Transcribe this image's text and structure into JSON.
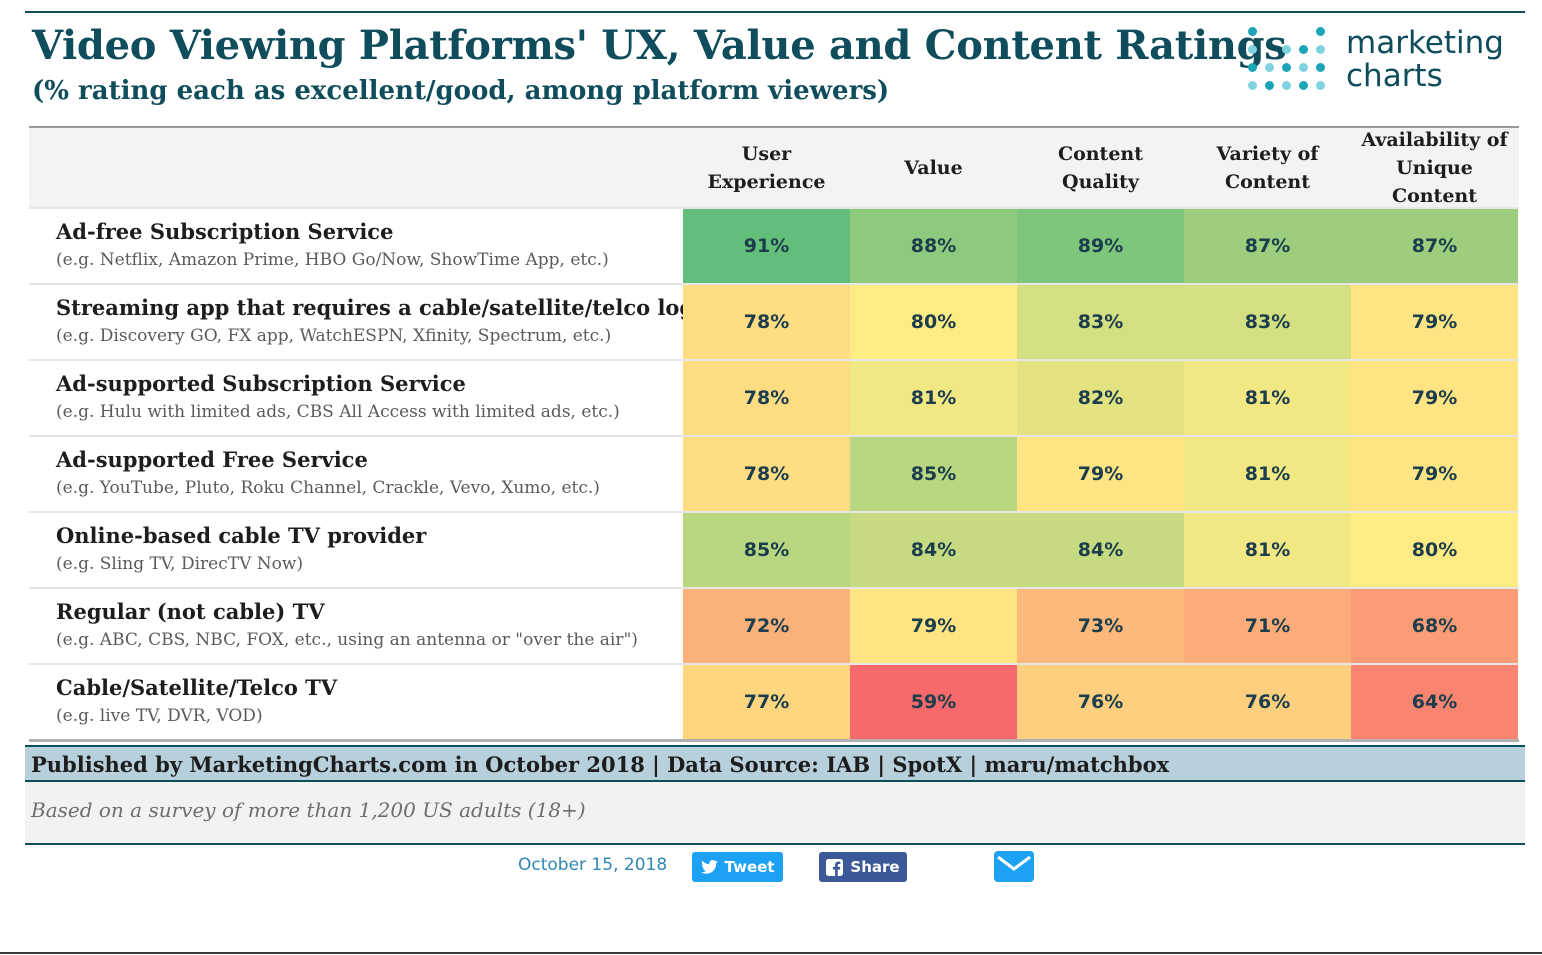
{
  "title": "Video Viewing Platforms' UX, Value and Content Ratings",
  "subtitle": "(% rating each as excellent/good, among platform viewers)",
  "logo": {
    "line1": "marketing",
    "line2": "charts",
    "dot_color_light": "#7fd3e0",
    "dot_color_dark": "#1aa6b7"
  },
  "chart_data": {
    "type": "table",
    "title": "Video Viewing Platforms' UX, Value and Content Ratings",
    "subtitle": "(% rating each as excellent/good, among platform viewers)",
    "columns": [
      "User Experience",
      "Value",
      "Content Quality",
      "Variety of Content",
      "Availability of Unique Content"
    ],
    "column_heads": [
      [
        "User",
        "Experience"
      ],
      [
        "Value"
      ],
      [
        "Content Quality"
      ],
      [
        "Variety of",
        "Content"
      ],
      [
        "Availability of",
        "Unique Content"
      ]
    ],
    "rows": [
      {
        "name": "Ad-free Subscription Service",
        "example": "(e.g. Netflix, Amazon Prime, HBO Go/Now, ShowTime App, etc.)",
        "values": [
          91,
          88,
          89,
          87,
          87
        ],
        "labels": [
          "91%",
          "88%",
          "89%",
          "87%",
          "87%"
        ]
      },
      {
        "name": "Streaming app that requires a cable/satellite/telco login",
        "example": "(e.g. Discovery GO, FX app, WatchESPN, Xfinity, Spectrum, etc.)",
        "values": [
          78,
          80,
          83,
          83,
          79
        ],
        "labels": [
          "78%",
          "80%",
          "83%",
          "83%",
          "79%"
        ]
      },
      {
        "name": "Ad-supported Subscription Service",
        "example": "(e.g. Hulu with limited ads, CBS All Access with limited ads, etc.)",
        "values": [
          78,
          81,
          82,
          81,
          79
        ],
        "labels": [
          "78%",
          "81%",
          "82%",
          "81%",
          "79%"
        ]
      },
      {
        "name": "Ad-supported Free Service",
        "example": "(e.g. YouTube, Pluto, Roku Channel, Crackle, Vevo, Xumo, etc.)",
        "values": [
          78,
          85,
          79,
          81,
          79
        ],
        "labels": [
          "78%",
          "85%",
          "79%",
          "81%",
          "79%"
        ]
      },
      {
        "name": "Online-based cable TV provider",
        "example": "(e.g. Sling TV, DirecTV Now)",
        "values": [
          85,
          84,
          84,
          81,
          80
        ],
        "labels": [
          "85%",
          "84%",
          "84%",
          "81%",
          "80%"
        ]
      },
      {
        "name": "Regular (not cable) TV",
        "example": "(e.g. ABC, CBS, NBC, FOX, etc., using an antenna or \"over the air\")",
        "values": [
          72,
          79,
          73,
          71,
          68
        ],
        "labels": [
          "72%",
          "79%",
          "73%",
          "71%",
          "68%"
        ]
      },
      {
        "name": "Cable/Satellite/Telco TV",
        "example": "(e.g. live TV, DVR, VOD)",
        "values": [
          77,
          59,
          76,
          76,
          64
        ],
        "labels": [
          "77%",
          "59%",
          "76%",
          "76%",
          "64%"
        ]
      }
    ],
    "color_scale": {
      "low_color": "#f8696b",
      "mid_color": "#ffeb84",
      "high_color": "#63be7b",
      "stops": [
        {
          "value": 59,
          "color": "#f8696b"
        },
        {
          "value": 72,
          "color": "#fbb27a"
        },
        {
          "value": 80,
          "color": "#ffeb84"
        },
        {
          "value": 91,
          "color": "#63be7b"
        }
      ]
    }
  },
  "footer": {
    "published": "Published by MarketingCharts.com in October 2018 | Data Source: IAB | SpotX | maru/matchbox",
    "note": "Based on a survey of more than 1,200 US adults (18+)"
  },
  "share": {
    "date": "October 15, 2018",
    "tweet_label": "Tweet",
    "share_label": "Share",
    "tweet_color": "#1da1f2",
    "share_color": "#3b5998",
    "mail_color": "#1da1f2"
  }
}
